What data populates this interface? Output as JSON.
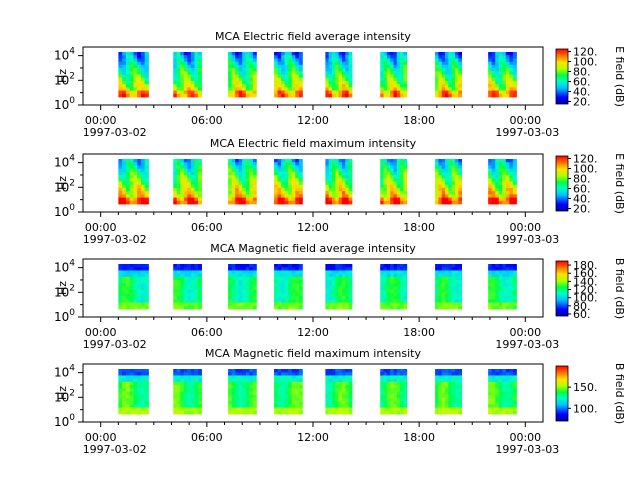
{
  "chart_data": [
    {
      "type": "heatmap",
      "title": "MCA  Electric field average intensity",
      "ylabel": "Hz",
      "yscale": "log",
      "ylim": [
        1,
        50000
      ],
      "y_ticks": [
        {
          "value": 1,
          "base": "10",
          "exp": "0"
        },
        {
          "value": 100,
          "base": "10",
          "exp": "2"
        },
        {
          "value": 10000,
          "base": "10",
          "exp": "4"
        }
      ],
      "x_ticks": [
        {
          "hour": 0,
          "label": "00:00"
        },
        {
          "hour": 6,
          "label": "06:00"
        },
        {
          "hour": 12,
          "label": "12:00"
        },
        {
          "hour": 18,
          "label": "18:00"
        },
        {
          "hour": 24,
          "label": "00:00"
        }
      ],
      "x_range_hours": [
        -1,
        25
      ],
      "date_start": "1997-03-02",
      "date_end": "1997-03-03",
      "colorbar": {
        "label": "E field (dB)",
        "range": [
          15,
          125
        ],
        "ticks": [
          20,
          40,
          60,
          80,
          100,
          120
        ],
        "tick_labels": [
          "20.",
          "40.",
          "60.",
          "80.",
          "100.",
          "120."
        ]
      },
      "passes_hours": [
        [
          1.0,
          2.7
        ],
        [
          4.1,
          5.7
        ],
        [
          7.2,
          8.8
        ],
        [
          9.8,
          11.4
        ],
        [
          12.7,
          14.2
        ],
        [
          15.8,
          17.3
        ],
        [
          18.9,
          20.4
        ],
        [
          21.9,
          23.5
        ]
      ],
      "signal": "electric_avg"
    },
    {
      "type": "heatmap",
      "title": "MCA  Electric field maximum intensity",
      "ylabel": "Hz",
      "yscale": "log",
      "ylim": [
        1,
        50000
      ],
      "y_ticks": [
        {
          "value": 1,
          "base": "10",
          "exp": "0"
        },
        {
          "value": 100,
          "base": "10",
          "exp": "2"
        },
        {
          "value": 10000,
          "base": "10",
          "exp": "4"
        }
      ],
      "x_ticks": [
        {
          "hour": 0,
          "label": "00:00"
        },
        {
          "hour": 6,
          "label": "06:00"
        },
        {
          "hour": 12,
          "label": "12:00"
        },
        {
          "hour": 18,
          "label": "18:00"
        },
        {
          "hour": 24,
          "label": "00:00"
        }
      ],
      "x_range_hours": [
        -1,
        25
      ],
      "date_start": "1997-03-02",
      "date_end": "1997-03-03",
      "colorbar": {
        "label": "E field (dB)",
        "range": [
          15,
          125
        ],
        "ticks": [
          20,
          40,
          60,
          80,
          100,
          120
        ],
        "tick_labels": [
          "20.",
          "40.",
          "60.",
          "80.",
          "100.",
          "120."
        ]
      },
      "passes_hours": [
        [
          1.0,
          2.7
        ],
        [
          4.1,
          5.7
        ],
        [
          7.2,
          8.8
        ],
        [
          9.8,
          11.4
        ],
        [
          12.7,
          14.2
        ],
        [
          15.8,
          17.3
        ],
        [
          18.9,
          20.4
        ],
        [
          21.9,
          23.5
        ]
      ],
      "signal": "electric_max"
    },
    {
      "type": "heatmap",
      "title": "MCA  Magnetic field average intensity",
      "ylabel": "Hz",
      "yscale": "log",
      "ylim": [
        1,
        50000
      ],
      "y_ticks": [
        {
          "value": 1,
          "base": "10",
          "exp": "0"
        },
        {
          "value": 100,
          "base": "10",
          "exp": "2"
        },
        {
          "value": 10000,
          "base": "10",
          "exp": "4"
        }
      ],
      "x_ticks": [
        {
          "hour": 0,
          "label": "00:00"
        },
        {
          "hour": 6,
          "label": "06:00"
        },
        {
          "hour": 12,
          "label": "12:00"
        },
        {
          "hour": 18,
          "label": "18:00"
        },
        {
          "hour": 24,
          "label": "00:00"
        }
      ],
      "x_range_hours": [
        -1,
        25
      ],
      "date_start": "1997-03-02",
      "date_end": "1997-03-03",
      "colorbar": {
        "label": "B field (dB)",
        "range": [
          55,
          190
        ],
        "ticks": [
          60,
          80,
          100,
          120,
          140,
          160,
          180
        ],
        "tick_labels": [
          "60.",
          "80.",
          "100.",
          "120.",
          "140.",
          "160.",
          "180."
        ]
      },
      "passes_hours": [
        [
          1.0,
          2.7
        ],
        [
          4.1,
          5.7
        ],
        [
          7.2,
          8.8
        ],
        [
          9.8,
          11.4
        ],
        [
          12.7,
          14.2
        ],
        [
          15.8,
          17.3
        ],
        [
          18.9,
          20.4
        ],
        [
          21.9,
          23.5
        ]
      ],
      "signal": "magnetic_avg"
    },
    {
      "type": "heatmap",
      "title": "MCA  Magnetic field maximum intensity",
      "ylabel": "Hz",
      "yscale": "log",
      "ylim": [
        1,
        50000
      ],
      "y_ticks": [
        {
          "value": 1,
          "base": "10",
          "exp": "0"
        },
        {
          "value": 100,
          "base": "10",
          "exp": "2"
        },
        {
          "value": 10000,
          "base": "10",
          "exp": "4"
        }
      ],
      "x_ticks": [
        {
          "hour": 0,
          "label": "00:00"
        },
        {
          "hour": 6,
          "label": "06:00"
        },
        {
          "hour": 12,
          "label": "12:00"
        },
        {
          "hour": 18,
          "label": "18:00"
        },
        {
          "hour": 24,
          "label": "00:00"
        }
      ],
      "x_range_hours": [
        -1,
        25
      ],
      "date_start": "1997-03-02",
      "date_end": "1997-03-03",
      "colorbar": {
        "label": "B field (dB)",
        "range": [
          70,
          200
        ],
        "ticks": [
          100,
          150
        ],
        "tick_labels": [
          "100.",
          "150."
        ]
      },
      "passes_hours": [
        [
          1.0,
          2.7
        ],
        [
          4.1,
          5.7
        ],
        [
          7.2,
          8.8
        ],
        [
          9.8,
          11.4
        ],
        [
          12.7,
          14.2
        ],
        [
          15.8,
          17.3
        ],
        [
          18.9,
          20.4
        ],
        [
          21.9,
          23.5
        ]
      ],
      "signal": "magnetic_max"
    }
  ]
}
